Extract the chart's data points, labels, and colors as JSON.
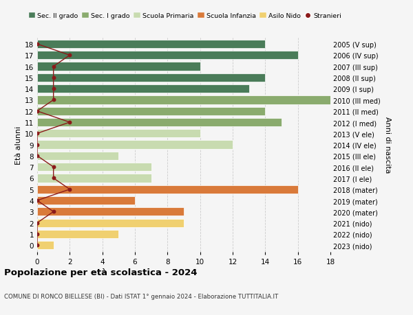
{
  "ages": [
    18,
    17,
    16,
    15,
    14,
    13,
    12,
    11,
    10,
    9,
    8,
    7,
    6,
    5,
    4,
    3,
    2,
    1,
    0
  ],
  "years": [
    "2005 (V sup)",
    "2006 (IV sup)",
    "2007 (III sup)",
    "2008 (II sup)",
    "2009 (I sup)",
    "2010 (III med)",
    "2011 (II med)",
    "2012 (I med)",
    "2013 (V ele)",
    "2014 (IV ele)",
    "2015 (III ele)",
    "2016 (II ele)",
    "2017 (I ele)",
    "2018 (mater)",
    "2019 (mater)",
    "2020 (mater)",
    "2021 (nido)",
    "2022 (nido)",
    "2023 (nido)"
  ],
  "bar_values": [
    14,
    16,
    10,
    14,
    13,
    18,
    14,
    15,
    10,
    12,
    5,
    7,
    7,
    16,
    6,
    9,
    9,
    5,
    1
  ],
  "bar_colors": [
    "#4a7c59",
    "#4a7c59",
    "#4a7c59",
    "#4a7c59",
    "#4a7c59",
    "#8aab6e",
    "#8aab6e",
    "#8aab6e",
    "#c8dbb0",
    "#c8dbb0",
    "#c8dbb0",
    "#c8dbb0",
    "#c8dbb0",
    "#d97a3a",
    "#d97a3a",
    "#d97a3a",
    "#f0d070",
    "#f0d070",
    "#f0d070"
  ],
  "stranieri_values": [
    0,
    2,
    1,
    1,
    1,
    1,
    0,
    2,
    0,
    0,
    0,
    1,
    1,
    2,
    0,
    1,
    0,
    0,
    0
  ],
  "stranieri_color": "#8b1a1a",
  "title": "Popolazione per età scolastica - 2024",
  "subtitle": "COMUNE DI RONCO BIELLESE (BI) - Dati ISTAT 1° gennaio 2024 - Elaborazione TUTTITALIA.IT",
  "ylabel_left": "Età alunni",
  "ylabel_right": "Anni di nascita",
  "xlim": [
    0,
    18
  ],
  "xticks": [
    0,
    2,
    4,
    6,
    8,
    10,
    12,
    14,
    16,
    18
  ],
  "legend_labels": [
    "Sec. II grado",
    "Sec. I grado",
    "Scuola Primaria",
    "Scuola Infanzia",
    "Asilo Nido",
    "Stranieri"
  ],
  "legend_colors": [
    "#4a7c59",
    "#8aab6e",
    "#c8dbb0",
    "#d97a3a",
    "#f0d070",
    "#8b1a1a"
  ],
  "bg_color": "#f5f5f5",
  "bar_height": 0.75
}
